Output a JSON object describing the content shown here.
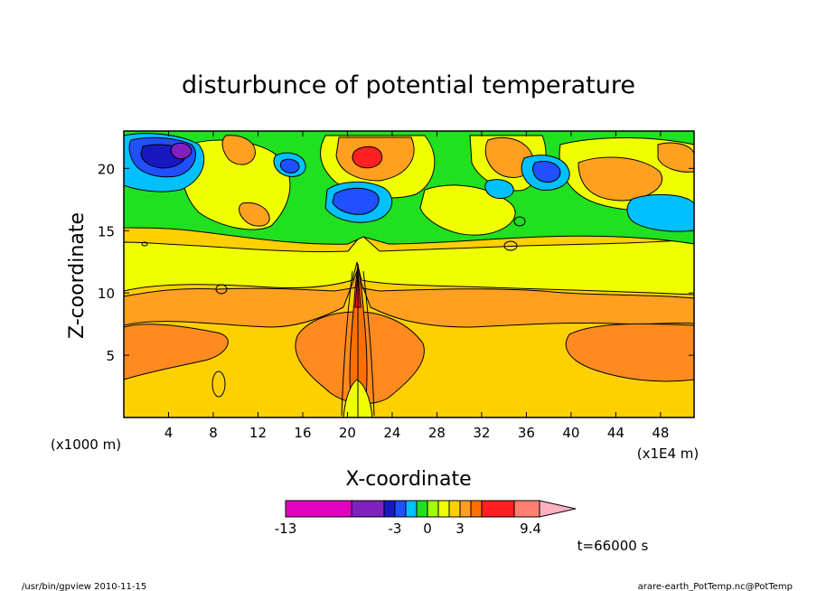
{
  "chart_data": {
    "type": "heatmap",
    "title": "disturbunce of potential temperature",
    "xlabel": "X-coordinate",
    "ylabel": "Z-coordinate",
    "x_unit_left": "(x1000 m)",
    "x_unit_right": "(x1E4 m)",
    "xlim": [
      0,
      51
    ],
    "ylim": [
      0,
      23
    ],
    "x_ticks": [
      4,
      8,
      12,
      16,
      20,
      24,
      28,
      32,
      36,
      40,
      44,
      48
    ],
    "y_ticks": [
      5,
      10,
      15,
      20
    ],
    "grid": false,
    "time_label": "t=66000 s",
    "colorbar": {
      "tick_labels": [
        "-13",
        "-3",
        "0",
        "3",
        "9.4"
      ],
      "colors": [
        "#e000c0",
        "#8020c0",
        "#1818c0",
        "#2050ff",
        "#00c0ff",
        "#20e020",
        "#a0ff00",
        "#f0ff00",
        "#ffd000",
        "#ffa020",
        "#ff7000",
        "#ff2020",
        "#ff8070",
        "#ffb0c0"
      ]
    }
  },
  "footer": {
    "left": "/usr/bin/gpview   2010-11-15",
    "right": "arare-earth_PotTemp.nc@PotTemp"
  }
}
